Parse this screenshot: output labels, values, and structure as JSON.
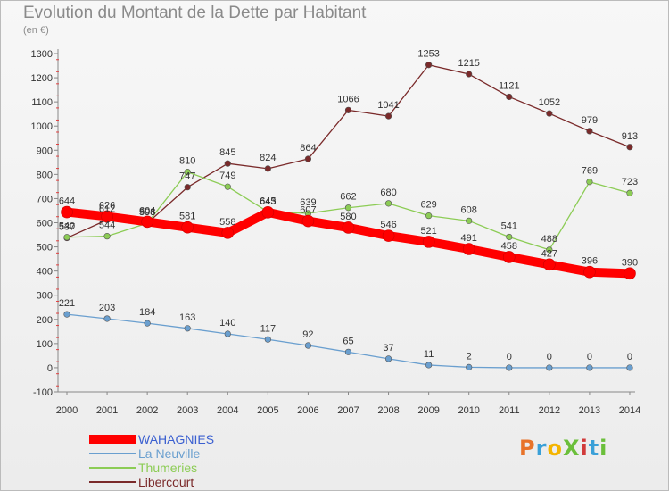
{
  "title": "Evolution du Montant de la Dette par Habitant",
  "unit": "(en €)",
  "logo": {
    "text": "ProXiti",
    "colors": [
      "#e8732a",
      "#3aa0d8",
      "#f4b400",
      "#6bbf3b",
      "#d13b3b",
      "#3aa0d8",
      "#6bbf3b"
    ]
  },
  "chart_data": {
    "type": "line",
    "title": "Evolution du Montant de la Dette par Habitant",
    "ylabel": "(en €)",
    "x": [
      "2000",
      "2001",
      "2002",
      "2003",
      "2004",
      "2005",
      "2006",
      "2007",
      "2008",
      "2009",
      "2010",
      "2011",
      "2012",
      "2013",
      "2014"
    ],
    "ylim": [
      -100,
      1300
    ],
    "yticks": [
      -100,
      0,
      100,
      200,
      300,
      400,
      500,
      600,
      700,
      800,
      900,
      1000,
      1100,
      1200,
      1300
    ],
    "grid": false,
    "legend": "bottom-left",
    "series": [
      {
        "name": "WAHAGNIES",
        "color": "#ff0000",
        "values": [
          644,
          626,
          604,
          581,
          558,
          643,
          607,
          580,
          546,
          521,
          491,
          458,
          427,
          396,
          390
        ]
      },
      {
        "name": "La Neuville",
        "color": "#6a9fcf",
        "values": [
          221,
          203,
          184,
          163,
          140,
          117,
          92,
          65,
          37,
          11,
          2,
          0,
          0,
          0,
          0
        ]
      },
      {
        "name": "Thumeries",
        "color": "#8ccc55",
        "values": [
          540,
          544,
          598,
          810,
          749,
          645,
          639,
          662,
          680,
          629,
          608,
          541,
          488,
          769,
          723
        ]
      },
      {
        "name": "Libercourt",
        "color": "#7a2a2a",
        "values": [
          537,
          612,
          598,
          747,
          845,
          824,
          864,
          1066,
          1041,
          1253,
          1215,
          1121,
          1052,
          979,
          913
        ]
      }
    ]
  }
}
